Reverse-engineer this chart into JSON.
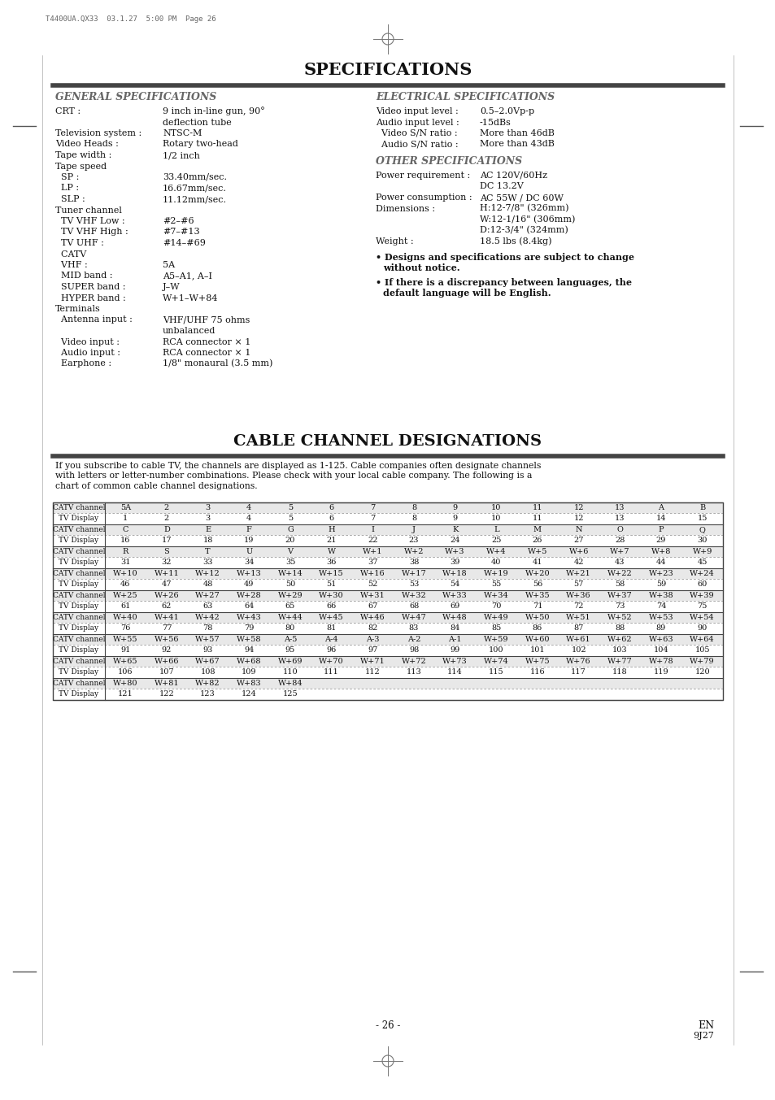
{
  "page_header": "T4400UA.QX33  03.1.27  5:00 PM  Page 26",
  "specs_title": "SPECIFICATIONS",
  "cable_title": "CABLE CHANNEL DESIGNATIONS",
  "general_spec_title": "GENERAL SPECIFICATIONS",
  "electrical_spec_title": "ELECTRICAL SPECIFICATIONS",
  "other_spec_title": "OTHER SPECIFICATIONS",
  "general_specs": [
    [
      "CRT :",
      "9 inch in-line gun, 90°",
      "deflection tube"
    ],
    [
      "Television system :",
      "NTSC-M",
      ""
    ],
    [
      "Video Heads :",
      "Rotary two-head",
      ""
    ],
    [
      "Tape width :",
      "1/2 inch",
      ""
    ],
    [
      "Tape speed",
      "",
      ""
    ],
    [
      "   SP :",
      "33.40mm/sec.",
      ""
    ],
    [
      "   LP :",
      "16.67mm/sec.",
      ""
    ],
    [
      "   SLP :",
      "11.12mm/sec.",
      ""
    ],
    [
      "Tuner channel",
      "",
      ""
    ],
    [
      "   TV VHF Low :",
      "#2–#6",
      ""
    ],
    [
      "   TV VHF High :",
      "#7–#13",
      ""
    ],
    [
      "   TV UHF :",
      "#14–#69",
      ""
    ],
    [
      "   CATV",
      "",
      ""
    ],
    [
      "   VHF :",
      "5A",
      ""
    ],
    [
      "   MID band :",
      "A5–A1, A–I",
      ""
    ],
    [
      "   SUPER band :",
      "J–W",
      ""
    ],
    [
      "   HYPER band :",
      "W+1–W+84",
      ""
    ],
    [
      "Terminals",
      "",
      ""
    ],
    [
      "   Antenna input :",
      "VHF/UHF 75 ohms",
      "unbalanced"
    ],
    [
      "   Video input :",
      "RCA connector × 1",
      ""
    ],
    [
      "   Audio input :",
      "RCA connector × 1",
      ""
    ],
    [
      "   Earphone :",
      "1/8\" monaural (3.5 mm)",
      ""
    ]
  ],
  "electrical_specs": [
    [
      "Video input level :",
      "0.5–2.0Vp-p"
    ],
    [
      "Audio input level :",
      "-15dBs"
    ],
    [
      "   Video S/N ratio :",
      "More than 46dB"
    ],
    [
      "   Audio S/N ratio :",
      "More than 43dB"
    ]
  ],
  "other_specs_items": [
    [
      "Power requirement :",
      [
        "AC 120V/60Hz",
        "DC 13.2V"
      ]
    ],
    [
      "Power consumption :",
      [
        "AC 55W / DC 60W"
      ]
    ],
    [
      "Dimensions :",
      [
        "H:12-7/8\" (326mm)",
        "W:12-1/16\" (306mm)",
        "D:12-3/4\" (324mm)"
      ]
    ],
    [
      "Weight :",
      [
        "18.5 lbs (8.4kg)"
      ]
    ]
  ],
  "bullets": [
    "Designs and specifications are subject to change\nwithout notice.",
    "If there is a discrepancy between languages, the\ndefault language will be English."
  ],
  "cable_intro": "If you subscribe to cable TV, the channels are displayed as 1-125. Cable companies often designate channels\nwith letters or letter-number combinations. Please check with your local cable company. The following is a\nchart of common cable channel designations.",
  "table_rows": [
    [
      "CATV channel",
      "5A",
      "2",
      "3",
      "4",
      "5",
      "6",
      "7",
      "8",
      "9",
      "10",
      "11",
      "12",
      "13",
      "A",
      "B"
    ],
    [
      "TV Display",
      "1",
      "2",
      "3",
      "4",
      "5",
      "6",
      "7",
      "8",
      "9",
      "10",
      "11",
      "12",
      "13",
      "14",
      "15"
    ],
    [
      "CATV channel",
      "C",
      "D",
      "E",
      "F",
      "G",
      "H",
      "I",
      "J",
      "K",
      "L",
      "M",
      "N",
      "O",
      "P",
      "Q"
    ],
    [
      "TV Display",
      "16",
      "17",
      "18",
      "19",
      "20",
      "21",
      "22",
      "23",
      "24",
      "25",
      "26",
      "27",
      "28",
      "29",
      "30"
    ],
    [
      "CATV channel",
      "R",
      "S",
      "T",
      "U",
      "V",
      "W",
      "W+1",
      "W+2",
      "W+3",
      "W+4",
      "W+5",
      "W+6",
      "W+7",
      "W+8",
      "W+9"
    ],
    [
      "TV Display",
      "31",
      "32",
      "33",
      "34",
      "35",
      "36",
      "37",
      "38",
      "39",
      "40",
      "41",
      "42",
      "43",
      "44",
      "45"
    ],
    [
      "CATV channel",
      "W+10",
      "W+11",
      "W+12",
      "W+13",
      "W+14",
      "W+15",
      "W+16",
      "W+17",
      "W+18",
      "W+19",
      "W+20",
      "W+21",
      "W+22",
      "W+23",
      "W+24"
    ],
    [
      "TV Display",
      "46",
      "47",
      "48",
      "49",
      "50",
      "51",
      "52",
      "53",
      "54",
      "55",
      "56",
      "57",
      "58",
      "59",
      "60"
    ],
    [
      "CATV channel",
      "W+25",
      "W+26",
      "W+27",
      "W+28",
      "W+29",
      "W+30",
      "W+31",
      "W+32",
      "W+33",
      "W+34",
      "W+35",
      "W+36",
      "W+37",
      "W+38",
      "W+39"
    ],
    [
      "TV Display",
      "61",
      "62",
      "63",
      "64",
      "65",
      "66",
      "67",
      "68",
      "69",
      "70",
      "71",
      "72",
      "73",
      "74",
      "75"
    ],
    [
      "CATV channel",
      "W+40",
      "W+41",
      "W+42",
      "W+43",
      "W+44",
      "W+45",
      "W+46",
      "W+47",
      "W+48",
      "W+49",
      "W+50",
      "W+51",
      "W+52",
      "W+53",
      "W+54"
    ],
    [
      "TV Display",
      "76",
      "77",
      "78",
      "79",
      "80",
      "81",
      "82",
      "83",
      "84",
      "85",
      "86",
      "87",
      "88",
      "89",
      "90"
    ],
    [
      "CATV channel",
      "W+55",
      "W+56",
      "W+57",
      "W+58",
      "A-5",
      "A-4",
      "A-3",
      "A-2",
      "A-1",
      "W+59",
      "W+60",
      "W+61",
      "W+62",
      "W+63",
      "W+64"
    ],
    [
      "TV Display",
      "91",
      "92",
      "93",
      "94",
      "95",
      "96",
      "97",
      "98",
      "99",
      "100",
      "101",
      "102",
      "103",
      "104",
      "105"
    ],
    [
      "CATV channel",
      "W+65",
      "W+66",
      "W+67",
      "W+68",
      "W+69",
      "W+70",
      "W+71",
      "W+72",
      "W+73",
      "W+74",
      "W+75",
      "W+76",
      "W+77",
      "W+78",
      "W+79"
    ],
    [
      "TV Display",
      "106",
      "107",
      "108",
      "109",
      "110",
      "111",
      "112",
      "113",
      "114",
      "115",
      "116",
      "117",
      "118",
      "119",
      "120"
    ],
    [
      "CATV channel",
      "W+80",
      "W+81",
      "W+82",
      "W+83",
      "W+84",
      "",
      "",
      "",
      "",
      "",
      "",
      "",
      "",
      "",
      ""
    ],
    [
      "TV Display",
      "121",
      "122",
      "123",
      "124",
      "125",
      "",
      "",
      "",
      "",
      "",
      "",
      "",
      "",
      "",
      ""
    ]
  ],
  "page_num": "- 26 -",
  "page_en": "EN",
  "page_code": "9J27",
  "bg_color": "#ffffff",
  "text_color": "#111111",
  "section_title_color": "#666666",
  "table_catv_bg": "#e8e8e8",
  "table_tv_bg": "#ffffff",
  "table_border": "#444444",
  "line_color": "#444444"
}
